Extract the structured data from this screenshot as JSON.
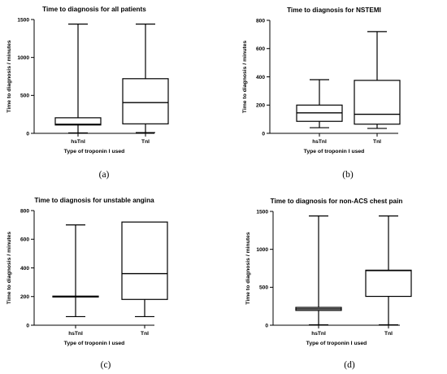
{
  "chart_data": [
    {
      "type": "boxplot",
      "caption": "(a)",
      "title": "Time to diagnosis for all patients",
      "xlabel": "Type of troponin I used",
      "ylabel": "Time to diagnosis / minutes",
      "ylim": [
        0,
        1500
      ],
      "yticks": [
        "0",
        "500",
        "1000",
        "1500"
      ],
      "categories": [
        "hsTnI",
        "TnI"
      ],
      "boxes": [
        {
          "min": 5,
          "q1": 110,
          "median": 120,
          "q3": 205,
          "max": 1440
        },
        {
          "min": 10,
          "q1": 125,
          "median": 405,
          "q3": 720,
          "max": 1440
        }
      ]
    },
    {
      "type": "boxplot",
      "caption": "(b)",
      "title": "Time to diagnosis for NSTEMI",
      "xlabel": "Type of troponin I used",
      "ylabel": "Time to diagnosis / minutes",
      "ylim": [
        0,
        800
      ],
      "yticks": [
        "0",
        "200",
        "400",
        "600",
        "800"
      ],
      "categories": [
        "hsTnI",
        "TnI"
      ],
      "boxes": [
        {
          "min": 40,
          "q1": 85,
          "median": 145,
          "q3": 200,
          "max": 380
        },
        {
          "min": 35,
          "q1": 65,
          "median": 135,
          "q3": 375,
          "max": 720
        }
      ]
    },
    {
      "type": "boxplot",
      "caption": "(c)",
      "title": "Time to diagnosis for unstable angina",
      "xlabel": "Type of troponin I used",
      "ylabel": "Time to diagnosis / minutes",
      "ylim": [
        0,
        800
      ],
      "yticks": [
        "0",
        "200",
        "400",
        "600",
        "800"
      ],
      "categories": [
        "hsTnI",
        "TnI"
      ],
      "boxes": [
        {
          "min": 60,
          "q1": 197,
          "median": 200,
          "q3": 203,
          "max": 700
        },
        {
          "min": 60,
          "q1": 180,
          "median": 360,
          "q3": 720,
          "max": 720
        }
      ]
    },
    {
      "type": "boxplot",
      "caption": "(d)",
      "title": "Time to diagnosis for non-ACS chest pain",
      "xlabel": "Type of troponin I used",
      "ylabel": "Time to diagnosis / minutes",
      "ylim": [
        0,
        1500
      ],
      "yticks": [
        "0",
        "500",
        "1000",
        "1500"
      ],
      "categories": [
        "hsTnI",
        "TnI"
      ],
      "boxes": [
        {
          "min": 5,
          "q1": 195,
          "median": 215,
          "q3": 235,
          "max": 1440
        },
        {
          "min": 5,
          "q1": 380,
          "median": 720,
          "q3": 725,
          "max": 1440
        }
      ]
    }
  ]
}
